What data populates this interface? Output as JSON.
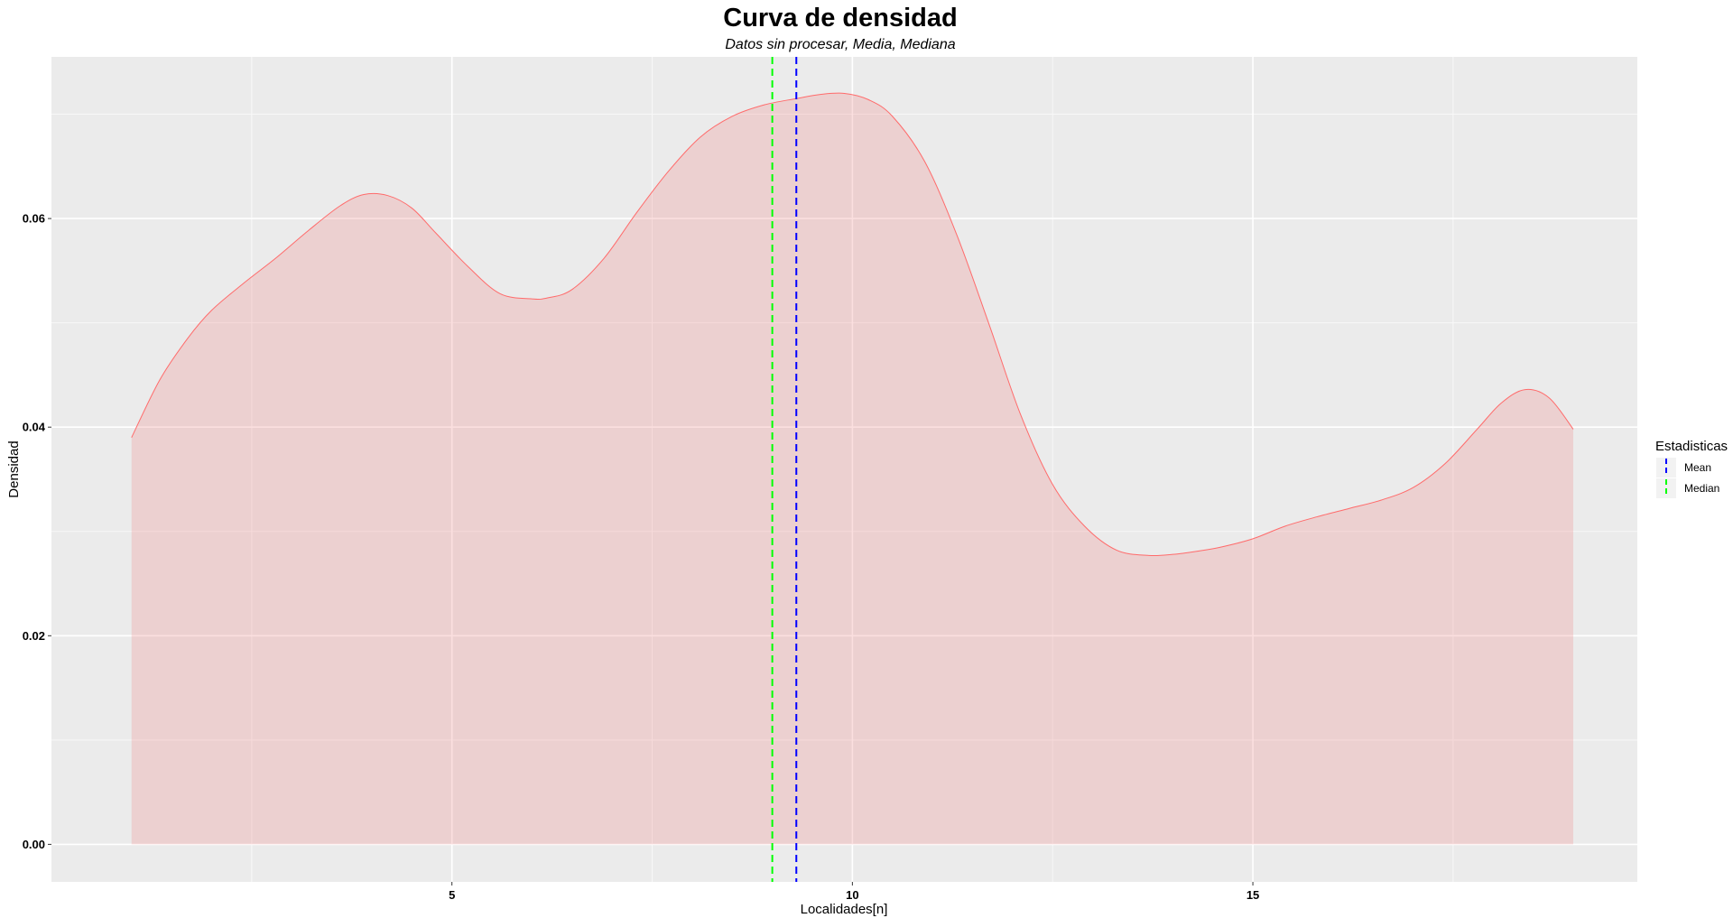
{
  "chart_data": {
    "type": "area",
    "title": "Curva de densidad",
    "subtitle": "Datos sin procesar, Media, Mediana",
    "xlabel": "Localidades[n]",
    "ylabel": "Densidad",
    "xlim": [
      0.0,
      19.8
    ],
    "ylim": [
      -0.0036,
      0.0755
    ],
    "x_ticks": [
      5,
      10,
      15
    ],
    "x_tick_labels": [
      "5",
      "10",
      "15"
    ],
    "x_minor_ticks": [
      2.5,
      7.5,
      12.5,
      17.5
    ],
    "y_ticks": [
      0.0,
      0.02,
      0.04,
      0.06
    ],
    "y_tick_labels": [
      "0.00",
      "0.02",
      "0.04",
      "0.06"
    ],
    "y_minor_ticks": [
      0.01,
      0.03,
      0.05,
      0.07
    ],
    "grid": true,
    "background": "#EBEBEB",
    "density": {
      "fill": "#F08080",
      "fill_opacity": 0.25,
      "line_color": "#FF6B6B",
      "x": [
        1.0,
        1.35,
        1.7,
        2.0,
        2.4,
        2.8,
        3.2,
        3.6,
        3.9,
        4.2,
        4.5,
        4.8,
        5.2,
        5.6,
        6.0,
        6.2,
        6.5,
        6.9,
        7.3,
        7.7,
        8.1,
        8.5,
        8.9,
        9.3,
        9.6,
        9.9,
        10.2,
        10.5,
        10.9,
        11.3,
        11.7,
        12.1,
        12.5,
        12.9,
        13.3,
        13.7,
        14.0,
        14.3,
        14.6,
        15.0,
        15.4,
        15.8,
        16.2,
        16.6,
        17.0,
        17.4,
        17.8,
        18.1,
        18.4,
        18.7,
        19.0
      ],
      "y": [
        0.039,
        0.0445,
        0.0485,
        0.0512,
        0.0538,
        0.0562,
        0.0588,
        0.0612,
        0.0623,
        0.0622,
        0.061,
        0.0586,
        0.0554,
        0.0528,
        0.0523,
        0.0524,
        0.0532,
        0.0562,
        0.0605,
        0.0645,
        0.0678,
        0.0698,
        0.0709,
        0.0715,
        0.0719,
        0.072,
        0.0714,
        0.0698,
        0.0655,
        0.0585,
        0.05,
        0.0412,
        0.0345,
        0.0305,
        0.0282,
        0.0277,
        0.0278,
        0.0281,
        0.0285,
        0.0293,
        0.0305,
        0.0314,
        0.0322,
        0.033,
        0.0342,
        0.0365,
        0.0398,
        0.0423,
        0.0436,
        0.0428,
        0.0398
      ]
    },
    "vlines": [
      {
        "name": "Mean",
        "x": 9.3,
        "color": "#0000FF",
        "dash": "dashed"
      },
      {
        "name": "Median",
        "x": 9.0,
        "color": "#00FF00",
        "dash": "dashed"
      }
    ],
    "legend": {
      "title": "Estadisticas",
      "placement": "right",
      "entries": [
        {
          "label": "Mean",
          "color": "#0000FF"
        },
        {
          "label": "Median",
          "color": "#00FF00"
        }
      ]
    }
  }
}
